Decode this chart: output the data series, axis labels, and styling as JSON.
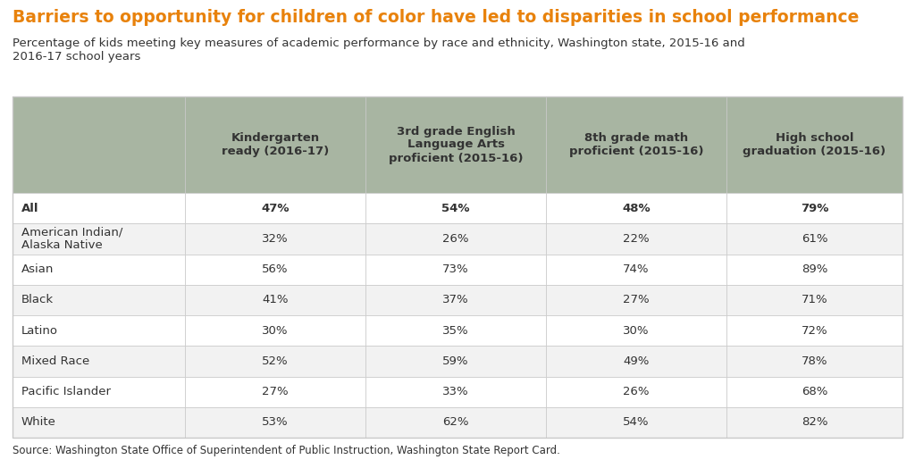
{
  "title": "Barriers to opportunity for children of color have led to disparities in school performance",
  "subtitle": "Percentage of kids meeting key measures of academic performance by race and ethnicity, Washington state, 2015-16 and\n2016-17 school years",
  "source": "Source: Washington State Office of Superintendent of Public Instruction, Washington State Report Card.",
  "title_color": "#E8820C",
  "subtitle_color": "#333333",
  "col_headers": [
    "Kindergarten\nready (2016-17)",
    "3rd grade English\nLanguage Arts\nproficient (2015-16)",
    "8th grade math\nproficient (2015-16)",
    "High school\ngraduation (2015-16)"
  ],
  "row_labels": [
    "All",
    "American Indian/\nAlaska Native",
    "Asian",
    "Black",
    "Latino",
    "Mixed Race",
    "Pacific Islander",
    "White"
  ],
  "data": [
    [
      "47%",
      "54%",
      "48%",
      "79%"
    ],
    [
      "32%",
      "26%",
      "22%",
      "61%"
    ],
    [
      "56%",
      "73%",
      "74%",
      "89%"
    ],
    [
      "41%",
      "37%",
      "27%",
      "71%"
    ],
    [
      "30%",
      "35%",
      "30%",
      "72%"
    ],
    [
      "52%",
      "59%",
      "49%",
      "78%"
    ],
    [
      "27%",
      "33%",
      "26%",
      "68%"
    ],
    [
      "53%",
      "62%",
      "54%",
      "82%"
    ]
  ],
  "header_bg": "#A8B5A2",
  "row_alt_bg": "#F2F2F2",
  "row_bg": "#FFFFFF",
  "border_color": "#C8C8C8",
  "text_color": "#333333",
  "bold_rows": [
    0
  ],
  "background_color": "#FFFFFF",
  "title_fontsize": 13.5,
  "subtitle_fontsize": 9.5,
  "header_fontsize": 9.5,
  "data_fontsize": 9.5,
  "source_fontsize": 8.5
}
